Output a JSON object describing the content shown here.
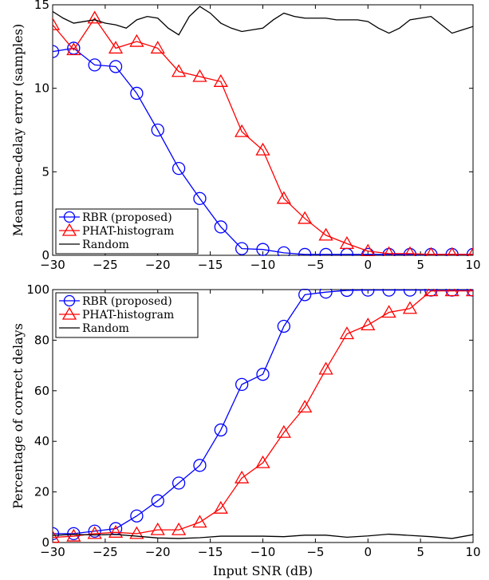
{
  "chart_data": [
    {
      "type": "line",
      "xlabel": "",
      "ylabel": "Mean time-delay error (samples)",
      "xlim": [
        -30,
        10
      ],
      "ylim": [
        0,
        15
      ],
      "xticks": [
        "−30",
        "−25",
        "−20",
        "−15",
        "−10",
        "−5",
        "0",
        "5",
        "10"
      ],
      "yticks": [
        "0",
        "5",
        "10",
        "15"
      ],
      "grid": false,
      "legend_position": "bottom-left",
      "x": [
        -30,
        -28,
        -26,
        -24,
        -22,
        -20,
        -18,
        -16,
        -14,
        -12,
        -10,
        -8,
        -6,
        -4,
        -2,
        0,
        2,
        4,
        6,
        8,
        10
      ],
      "series": [
        {
          "name": "RBR (proposed)",
          "color": "#0000ff",
          "marker": "circle",
          "values": [
            12.2,
            12.4,
            11.4,
            11.3,
            9.7,
            7.5,
            5.2,
            3.4,
            1.7,
            0.4,
            0.35,
            0.15,
            0.05,
            0.05,
            0.05,
            0.05,
            0.05,
            0.05,
            0.05,
            0.05,
            0.05
          ]
        },
        {
          "name": "PHAT-histogram",
          "color": "#ff0000",
          "marker": "triangle",
          "values": [
            13.8,
            12.3,
            14.2,
            12.4,
            12.8,
            12.4,
            11.0,
            10.7,
            10.4,
            7.4,
            6.3,
            3.4,
            2.2,
            1.2,
            0.7,
            0.25,
            0.1,
            0.1,
            0.05,
            0.05,
            0.05
          ]
        },
        {
          "name": "Random",
          "color": "#000000",
          "marker": "none",
          "x": [
            -30,
            -29,
            -28,
            -27,
            -26,
            -25,
            -24,
            -23,
            -22,
            -21,
            -20,
            -19,
            -18,
            -17,
            -16,
            -15,
            -14,
            -13,
            -12,
            -11,
            -10,
            -9,
            -8,
            -7,
            -6,
            -5,
            -4,
            -3,
            -2,
            -1,
            0,
            1,
            2,
            3,
            4,
            5,
            6,
            7,
            8,
            9,
            10
          ],
          "values": [
            14.6,
            14.2,
            13.9,
            14.0,
            14.1,
            13.9,
            13.8,
            13.6,
            14.1,
            14.3,
            14.2,
            13.6,
            13.2,
            14.3,
            14.9,
            14.5,
            13.9,
            13.6,
            13.4,
            13.5,
            13.6,
            14.1,
            14.5,
            14.3,
            14.2,
            14.2,
            14.2,
            14.1,
            14.1,
            14.1,
            14.0,
            13.6,
            13.3,
            13.6,
            14.1,
            14.2,
            14.3,
            13.8,
            13.3,
            13.5,
            13.7
          ]
        }
      ]
    },
    {
      "type": "line",
      "xlabel": "Input SNR (dB)",
      "ylabel": "Percentage of correct delays",
      "xlim": [
        -30,
        10
      ],
      "ylim": [
        0,
        100
      ],
      "xticks": [
        "−30",
        "−25",
        "−20",
        "−15",
        "−10",
        "−5",
        "0",
        "5",
        "10"
      ],
      "yticks": [
        "0",
        "20",
        "40",
        "60",
        "80",
        "100"
      ],
      "grid": false,
      "legend_position": "top-left",
      "x": [
        -30,
        -28,
        -26,
        -24,
        -22,
        -20,
        -18,
        -16,
        -14,
        -12,
        -10,
        -8,
        -6,
        -4,
        -2,
        0,
        2,
        4,
        6,
        8,
        10
      ],
      "series": [
        {
          "name": "RBR (proposed)",
          "color": "#0000ff",
          "marker": "circle",
          "values": [
            3.5,
            3.5,
            4.5,
            5.5,
            10.5,
            16.5,
            23.5,
            30.5,
            44.5,
            62.5,
            66.5,
            85.5,
            98.0,
            99.0,
            99.7,
            99.8,
            99.8,
            99.8,
            99.8,
            99.8,
            99.8
          ]
        },
        {
          "name": "PHAT-histogram",
          "color": "#ff0000",
          "marker": "triangle",
          "values": [
            2.0,
            2.5,
            3.5,
            4.0,
            3.5,
            5.0,
            5.0,
            8.0,
            13.5,
            25.5,
            31.5,
            43.5,
            53.5,
            68.5,
            82.5,
            86.0,
            91.0,
            92.5,
            99.5,
            99.5,
            99.5
          ]
        },
        {
          "name": "Random",
          "color": "#000000",
          "marker": "none",
          "x": [
            -30,
            -28,
            -26,
            -24,
            -22,
            -20,
            -18,
            -16,
            -14,
            -12,
            -10,
            -8,
            -6,
            -4,
            -2,
            0,
            2,
            4,
            6,
            8,
            10
          ],
          "values": [
            2.8,
            3.2,
            3.0,
            3.2,
            2.5,
            1.8,
            1.6,
            1.9,
            2.5,
            2.5,
            2.5,
            2.3,
            2.9,
            2.9,
            2.1,
            2.6,
            3.3,
            2.8,
            2.3,
            1.6,
            3.1
          ]
        }
      ]
    }
  ]
}
